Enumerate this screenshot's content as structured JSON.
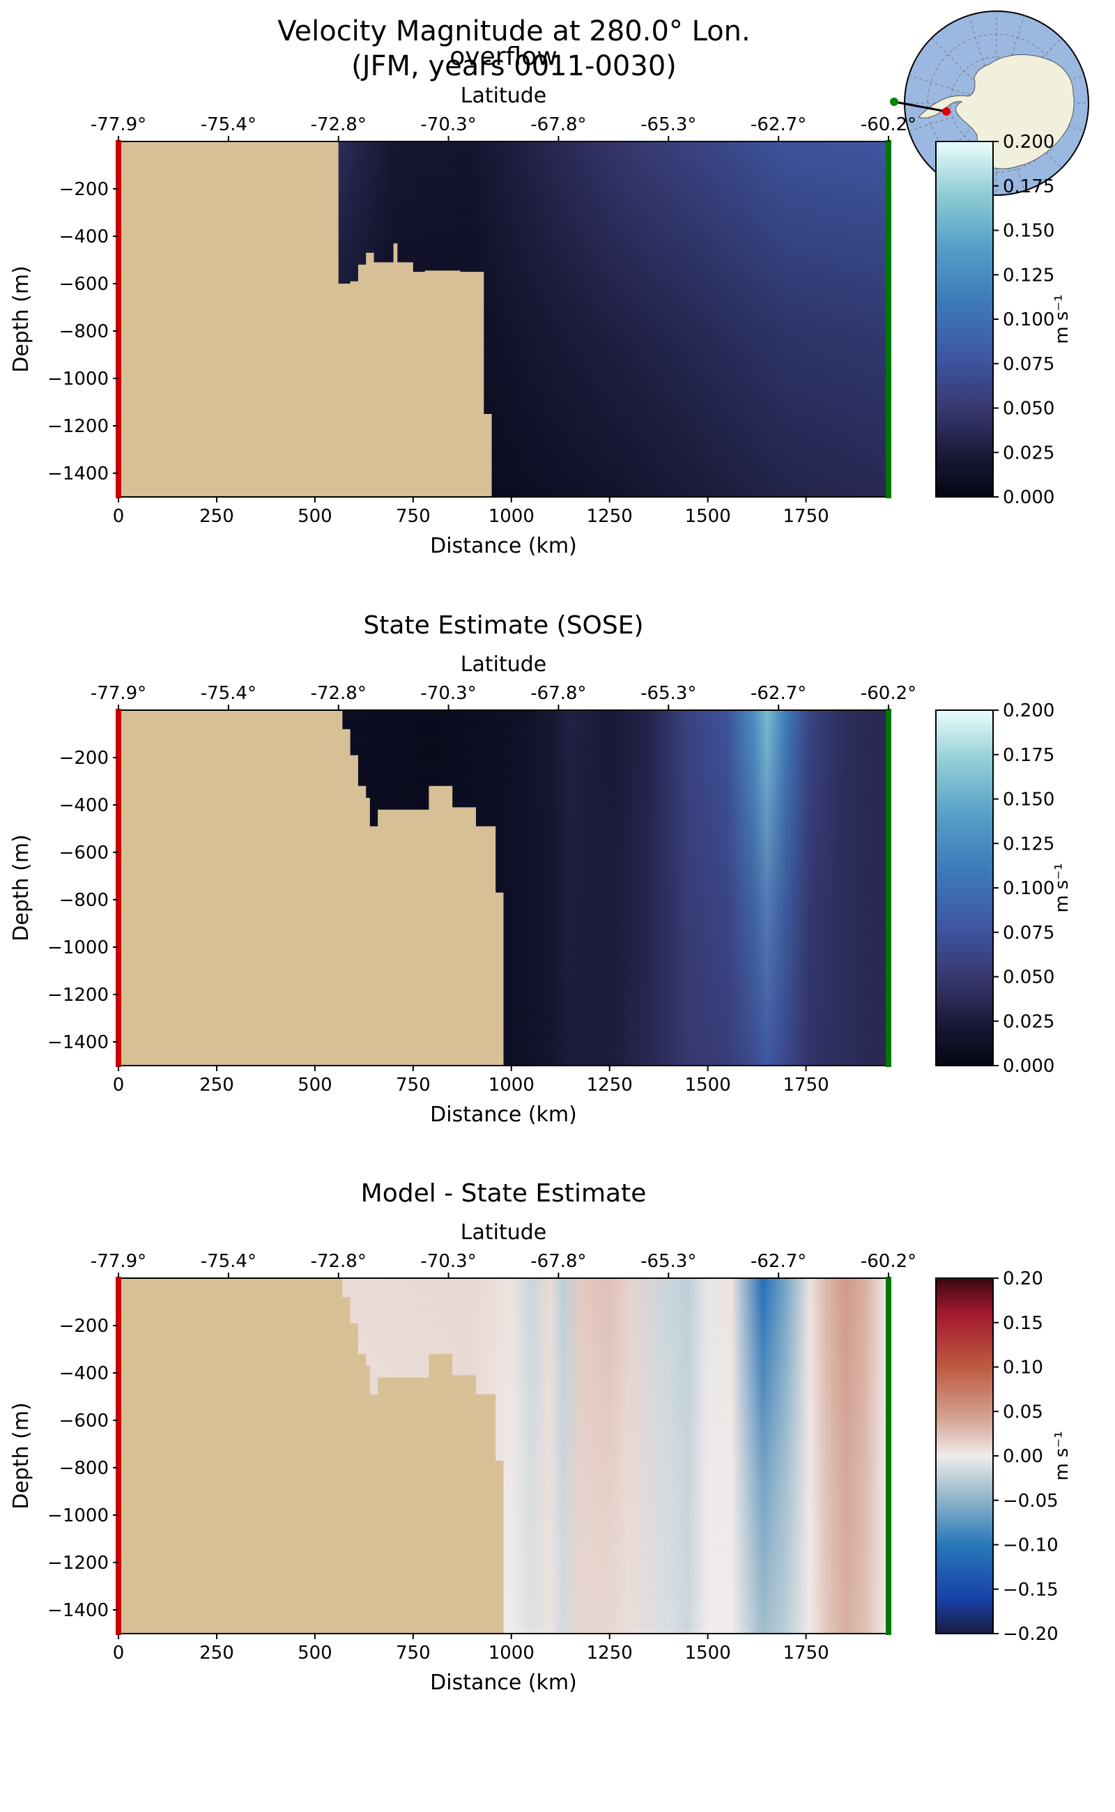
{
  "figure": {
    "title_line1": "Velocity Magnitude at 280.0° Lon.",
    "title_line2": "(JFM, years 0011-0030)"
  },
  "chart_data": [
    {
      "type": "heatmap",
      "title": "overflow",
      "xlabel": "Distance (km)",
      "ylabel": "Depth (m)",
      "top_axis_label": "Latitude",
      "top_ticks": [
        "-77.9°",
        "-75.4°",
        "-72.8°",
        "-70.3°",
        "-67.8°",
        "-65.3°",
        "-62.7°",
        "-60.2°"
      ],
      "xlim": [
        0,
        1960
      ],
      "ylim": [
        -1500,
        0
      ],
      "xticks": [
        0,
        250,
        500,
        750,
        1000,
        1250,
        1500,
        1750
      ],
      "yticks": [
        -200,
        -400,
        -600,
        -800,
        -1000,
        -1200,
        -1400
      ],
      "colorbar": {
        "label": "m s⁻¹",
        "colormap": "ice",
        "range": [
          0,
          0.2
        ],
        "ticks": [
          "0.000",
          "0.025",
          "0.050",
          "0.075",
          "0.100",
          "0.125",
          "0.150",
          "0.175",
          "0.200"
        ]
      },
      "bathymetry": [
        [
          560,
          0
        ],
        [
          560,
          -600
        ],
        [
          590,
          -600
        ],
        [
          590,
          -590
        ],
        [
          610,
          -590
        ],
        [
          610,
          -520
        ],
        [
          630,
          -520
        ],
        [
          630,
          -470
        ],
        [
          650,
          -470
        ],
        [
          650,
          -510
        ],
        [
          700,
          -510
        ],
        [
          700,
          -430
        ],
        [
          710,
          -430
        ],
        [
          710,
          -510
        ],
        [
          750,
          -510
        ],
        [
          750,
          -550
        ],
        [
          780,
          -550
        ],
        [
          780,
          -545
        ],
        [
          870,
          -545
        ],
        [
          870,
          -550
        ],
        [
          930,
          -550
        ],
        [
          930,
          -1150
        ],
        [
          950,
          -1150
        ],
        [
          950,
          -1500
        ]
      ],
      "field": {
        "x_km": [
          560,
          700,
          900,
          1100,
          1300,
          1500,
          1700,
          1960
        ],
        "velocity_top": [
          0.04,
          0.02,
          0.018,
          0.035,
          0.05,
          0.062,
          0.075,
          0.078
        ],
        "velocity_bottom": [
          0.005,
          0.006,
          0.007,
          0.012,
          0.018,
          0.025,
          0.032,
          0.036
        ]
      },
      "section_markers": {
        "start_color": "#cc0000",
        "end_color": "#007700"
      }
    },
    {
      "type": "heatmap",
      "title": "State Estimate (SOSE)",
      "xlabel": "Distance (km)",
      "ylabel": "Depth (m)",
      "top_axis_label": "Latitude",
      "top_ticks": [
        "-77.9°",
        "-75.4°",
        "-72.8°",
        "-70.3°",
        "-67.8°",
        "-65.3°",
        "-62.7°",
        "-60.2°"
      ],
      "xlim": [
        0,
        1960
      ],
      "ylim": [
        -1500,
        0
      ],
      "xticks": [
        0,
        250,
        500,
        750,
        1000,
        1250,
        1500,
        1750
      ],
      "yticks": [
        -200,
        -400,
        -600,
        -800,
        -1000,
        -1200,
        -1400
      ],
      "colorbar": {
        "label": "m s⁻¹",
        "colormap": "ice",
        "range": [
          0,
          0.2
        ],
        "ticks": [
          "0.000",
          "0.025",
          "0.050",
          "0.075",
          "0.100",
          "0.125",
          "0.150",
          "0.175",
          "0.200"
        ]
      },
      "bathymetry": [
        [
          570,
          0
        ],
        [
          570,
          -80
        ],
        [
          590,
          -80
        ],
        [
          590,
          -190
        ],
        [
          610,
          -190
        ],
        [
          610,
          -320
        ],
        [
          630,
          -320
        ],
        [
          630,
          -370
        ],
        [
          640,
          -370
        ],
        [
          640,
          -490
        ],
        [
          660,
          -490
        ],
        [
          660,
          -420
        ],
        [
          790,
          -420
        ],
        [
          790,
          -320
        ],
        [
          850,
          -320
        ],
        [
          850,
          -410
        ],
        [
          910,
          -410
        ],
        [
          910,
          -490
        ],
        [
          960,
          -490
        ],
        [
          960,
          -770
        ],
        [
          980,
          -770
        ],
        [
          980,
          -1500
        ]
      ],
      "field": {
        "x_km": [
          570,
          800,
          1000,
          1100,
          1150,
          1250,
          1350,
          1450,
          1550,
          1620,
          1650,
          1700,
          1760,
          1850,
          1960
        ],
        "velocity_top": [
          0.01,
          0.008,
          0.012,
          0.02,
          0.03,
          0.022,
          0.032,
          0.06,
          0.075,
          0.13,
          0.16,
          0.11,
          0.06,
          0.04,
          0.035
        ],
        "velocity_bottom": [
          0.008,
          0.008,
          0.012,
          0.018,
          0.025,
          0.025,
          0.035,
          0.05,
          0.055,
          0.07,
          0.08,
          0.065,
          0.045,
          0.04,
          0.035
        ]
      },
      "section_markers": {
        "start_color": "#cc0000",
        "end_color": "#007700"
      }
    },
    {
      "type": "heatmap",
      "title": "Model - State Estimate",
      "xlabel": "Distance (km)",
      "ylabel": "Depth (m)",
      "top_axis_label": "Latitude",
      "top_ticks": [
        "-77.9°",
        "-75.4°",
        "-72.8°",
        "-70.3°",
        "-67.8°",
        "-65.3°",
        "-62.7°",
        "-60.2°"
      ],
      "xlim": [
        0,
        1960
      ],
      "ylim": [
        -1500,
        0
      ],
      "xticks": [
        0,
        250,
        500,
        750,
        1000,
        1250,
        1500,
        1750
      ],
      "yticks": [
        -200,
        -400,
        -600,
        -800,
        -1000,
        -1200,
        -1400
      ],
      "colorbar": {
        "label": "m s⁻¹",
        "colormap": "balance",
        "range": [
          -0.2,
          0.2
        ],
        "ticks": [
          "−0.20",
          "−0.15",
          "−0.10",
          "−0.05",
          "0.00",
          "0.05",
          "0.10",
          "0.15",
          "0.20"
        ]
      },
      "bathymetry": [
        [
          570,
          0
        ],
        [
          570,
          -80
        ],
        [
          590,
          -80
        ],
        [
          590,
          -190
        ],
        [
          610,
          -190
        ],
        [
          610,
          -320
        ],
        [
          630,
          -320
        ],
        [
          630,
          -370
        ],
        [
          640,
          -370
        ],
        [
          640,
          -490
        ],
        [
          660,
          -490
        ],
        [
          660,
          -420
        ],
        [
          790,
          -420
        ],
        [
          790,
          -320
        ],
        [
          850,
          -320
        ],
        [
          850,
          -410
        ],
        [
          910,
          -410
        ],
        [
          910,
          -490
        ],
        [
          960,
          -490
        ],
        [
          960,
          -770
        ],
        [
          980,
          -770
        ],
        [
          980,
          -1500
        ]
      ],
      "field": {
        "x_km": [
          570,
          900,
          1000,
          1050,
          1100,
          1130,
          1180,
          1250,
          1300,
          1400,
          1450,
          1500,
          1560,
          1640,
          1700,
          1760,
          1800,
          1850,
          1900,
          1960
        ],
        "diff_top": [
          0.01,
          0.012,
          0.005,
          -0.02,
          0.01,
          -0.025,
          0.02,
          0.025,
          0.015,
          -0.02,
          -0.025,
          -0.005,
          0.005,
          -0.11,
          -0.06,
          0.005,
          0.03,
          0.05,
          0.035,
          0.0
        ],
        "diff_bottom": [
          0.006,
          0.008,
          0.0,
          -0.01,
          0.005,
          -0.015,
          0.012,
          0.012,
          0.008,
          -0.012,
          -0.018,
          0.0,
          0.0,
          -0.04,
          -0.025,
          0.002,
          0.02,
          0.035,
          0.025,
          0.0
        ]
      },
      "section_markers": {
        "start_color": "#cc0000",
        "end_color": "#007700"
      }
    }
  ],
  "inset_map": {
    "description_colors": {
      "ocean": "#9bb8e0",
      "land": "#f1f0dc",
      "section_line": "#000000",
      "start_dot": "#008800",
      "end_dot": "#dd0000"
    }
  }
}
